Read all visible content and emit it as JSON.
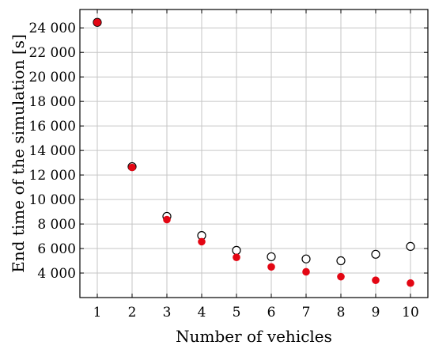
{
  "chart_data": {
    "type": "scatter",
    "title": "",
    "xlabel": "Number of vehicles",
    "ylabel": "End time of the simulation [s]",
    "x": [
      1,
      2,
      3,
      4,
      5,
      6,
      7,
      8,
      9,
      10
    ],
    "xlim": [
      0.5,
      10.5
    ],
    "ylim": [
      2000,
      25500
    ],
    "x_ticks": [
      1,
      2,
      3,
      4,
      5,
      6,
      7,
      8,
      9,
      10
    ],
    "x_tick_labels": [
      "1",
      "2",
      "3",
      "4",
      "5",
      "6",
      "7",
      "8",
      "9",
      "10"
    ],
    "y_ticks": [
      4000,
      6000,
      8000,
      10000,
      12000,
      14000,
      16000,
      18000,
      20000,
      22000,
      24000
    ],
    "y_tick_labels": [
      "4 000",
      "6 000",
      "8 000",
      "10 000",
      "12 000",
      "14 000",
      "16 000",
      "18 000",
      "20 000",
      "22 000",
      "24 000"
    ],
    "grid": true,
    "series": [
      {
        "marker": "hollow-circle",
        "color": "#000000",
        "values": [
          24450,
          12680,
          8620,
          7060,
          5850,
          5330,
          5150,
          5000,
          5530,
          6170
        ]
      },
      {
        "marker": "filled-circle",
        "color": "#e30613",
        "values": [
          24450,
          12620,
          8360,
          6560,
          5280,
          4500,
          4100,
          3700,
          3410,
          3180
        ]
      }
    ]
  }
}
